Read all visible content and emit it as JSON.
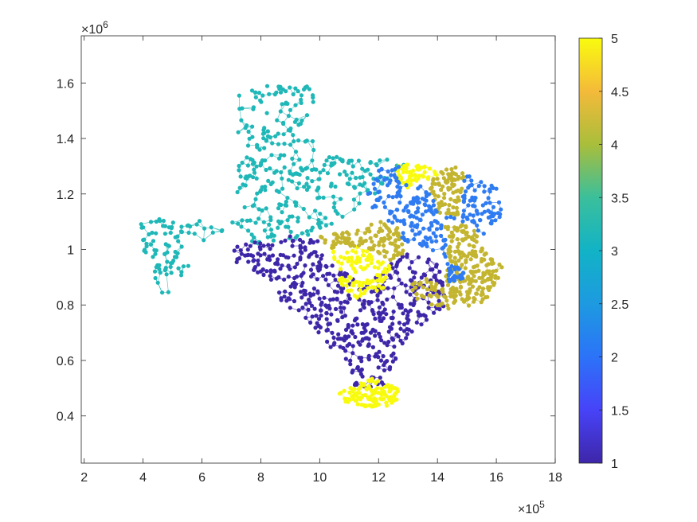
{
  "chart_data": {
    "type": "scatter",
    "description_style": "graph-partition network map",
    "xlim": [
      190000,
      1800000
    ],
    "ylim": [
      230000,
      1770000
    ],
    "x_ticks": [
      200000,
      400000,
      600000,
      800000,
      1000000,
      1200000,
      1400000,
      1600000,
      1800000
    ],
    "x_tick_labels": [
      "2",
      "4",
      "6",
      "8",
      "10",
      "12",
      "14",
      "16",
      "18"
    ],
    "y_ticks": [
      400000,
      600000,
      800000,
      1000000,
      1200000,
      1400000,
      1600000
    ],
    "y_tick_labels": [
      "0.4",
      "0.6",
      "0.8",
      "1",
      "1.2",
      "1.4",
      "1.6"
    ],
    "x_exponent_base": "×10",
    "x_exponent_power": "5",
    "y_exponent_base": "×10",
    "y_exponent_power": "6",
    "grid": false,
    "colorbar": {
      "limits": [
        1,
        5
      ],
      "ticks": [
        1,
        1.5,
        2,
        2.5,
        3,
        3.5,
        4,
        4.5,
        5
      ],
      "tick_labels": [
        "1",
        "1.5",
        "2",
        "2.5",
        "3",
        "3.5",
        "4",
        "4.5",
        "5"
      ],
      "colormap": "parula"
    },
    "clusters": [
      {
        "value": 3,
        "color": "#1fb7b7",
        "polygon": [
          [
            720000,
            1590000
          ],
          [
            980000,
            1590000
          ],
          [
            980000,
            1340000
          ],
          [
            1230000,
            1330000
          ],
          [
            1300000,
            1300000
          ],
          [
            1210000,
            1210000
          ],
          [
            1130000,
            1150000
          ],
          [
            990000,
            1060000
          ],
          [
            880000,
            1010000
          ],
          [
            780000,
            1010000
          ],
          [
            720000,
            1090000
          ],
          [
            630000,
            1040000
          ],
          [
            560000,
            990000
          ],
          [
            560000,
            910000
          ],
          [
            500000,
            830000
          ],
          [
            460000,
            830000
          ],
          [
            410000,
            960000
          ],
          [
            370000,
            1100000
          ],
          [
            500000,
            1120000
          ],
          [
            610000,
            1100000
          ],
          [
            720000,
            1100000
          ]
        ],
        "n_nodes": 420
      },
      {
        "value": 1,
        "color": "#3e26a8",
        "polygon": [
          [
            780000,
            1030000
          ],
          [
            900000,
            1050000
          ],
          [
            1000000,
            1030000
          ],
          [
            1020000,
            960000
          ],
          [
            1120000,
            900000
          ],
          [
            1150000,
            860000
          ],
          [
            1250000,
            960000
          ],
          [
            1320000,
            1000000
          ],
          [
            1400000,
            950000
          ],
          [
            1420000,
            870000
          ],
          [
            1430000,
            800000
          ],
          [
            1440000,
            790000
          ],
          [
            1320000,
            710000
          ],
          [
            1270000,
            640000
          ],
          [
            1260000,
            570000
          ],
          [
            1210000,
            500000
          ],
          [
            1110000,
            510000
          ],
          [
            1110000,
            580000
          ],
          [
            1040000,
            640000
          ],
          [
            930000,
            760000
          ],
          [
            860000,
            820000
          ],
          [
            850000,
            860000
          ],
          [
            810000,
            900000
          ],
          [
            700000,
            960000
          ],
          [
            700000,
            1010000
          ]
        ],
        "n_nodes": 520
      },
      {
        "value": 5,
        "color": "#f9fb0e",
        "polygon": [
          [
            1060000,
            480000
          ],
          [
            1180000,
            540000
          ],
          [
            1270000,
            500000
          ],
          [
            1260000,
            440000
          ],
          [
            1180000,
            430000
          ],
          [
            1090000,
            440000
          ]
        ],
        "n_nodes": 120
      },
      {
        "value": 5,
        "color": "#f9fb0e",
        "polygon": [
          [
            1040000,
            1010000
          ],
          [
            1080000,
            980000
          ],
          [
            1130000,
            1020000
          ],
          [
            1200000,
            970000
          ],
          [
            1250000,
            930000
          ],
          [
            1220000,
            860000
          ],
          [
            1160000,
            840000
          ],
          [
            1130000,
            820000
          ],
          [
            1070000,
            870000
          ]
        ],
        "n_nodes": 110
      },
      {
        "value": 5,
        "color": "#f9fb0e",
        "polygon": [
          [
            1270000,
            1310000
          ],
          [
            1380000,
            1300000
          ],
          [
            1400000,
            1270000
          ],
          [
            1360000,
            1230000
          ],
          [
            1320000,
            1240000
          ],
          [
            1300000,
            1220000
          ],
          [
            1260000,
            1250000
          ]
        ],
        "n_nodes": 60
      },
      {
        "value": 4,
        "color": "#c3b52f",
        "polygon": [
          [
            1000000,
            1060000
          ],
          [
            1140000,
            1080000
          ],
          [
            1210000,
            1110000
          ],
          [
            1260000,
            1090000
          ],
          [
            1280000,
            1040000
          ],
          [
            1290000,
            990000
          ],
          [
            1240000,
            960000
          ],
          [
            1170000,
            1000000
          ],
          [
            1120000,
            1010000
          ],
          [
            1050000,
            1000000
          ],
          [
            1010000,
            1020000
          ]
        ],
        "n_nodes": 110
      },
      {
        "value": 4,
        "color": "#c3b52f",
        "polygon": [
          [
            1400000,
            1280000
          ],
          [
            1470000,
            1300000
          ],
          [
            1490000,
            1270000
          ],
          [
            1480000,
            1200000
          ],
          [
            1470000,
            1120000
          ],
          [
            1400000,
            1130000
          ],
          [
            1380000,
            1200000
          ],
          [
            1360000,
            1230000
          ]
        ],
        "n_nodes": 90
      },
      {
        "value": 4,
        "color": "#c3b52f",
        "polygon": [
          [
            1420000,
            1080000
          ],
          [
            1500000,
            1090000
          ],
          [
            1550000,
            1050000
          ],
          [
            1560000,
            990000
          ],
          [
            1620000,
            940000
          ],
          [
            1600000,
            870000
          ],
          [
            1560000,
            810000
          ],
          [
            1500000,
            790000
          ],
          [
            1440000,
            780000
          ],
          [
            1380000,
            800000
          ],
          [
            1330000,
            820000
          ],
          [
            1300000,
            860000
          ],
          [
            1340000,
            900000
          ],
          [
            1420000,
            880000
          ],
          [
            1430000,
            950000
          ],
          [
            1440000,
            1020000
          ]
        ],
        "n_nodes": 260
      },
      {
        "value": 2,
        "color": "#2f7bf2",
        "polygon": [
          [
            1200000,
            1290000
          ],
          [
            1270000,
            1300000
          ],
          [
            1260000,
            1250000
          ],
          [
            1300000,
            1230000
          ],
          [
            1360000,
            1230000
          ],
          [
            1380000,
            1200000
          ],
          [
            1400000,
            1130000
          ],
          [
            1470000,
            1120000
          ],
          [
            1480000,
            1200000
          ],
          [
            1490000,
            1270000
          ],
          [
            1560000,
            1270000
          ],
          [
            1600000,
            1260000
          ],
          [
            1620000,
            1140000
          ],
          [
            1600000,
            1080000
          ],
          [
            1550000,
            1050000
          ],
          [
            1500000,
            1090000
          ],
          [
            1420000,
            1080000
          ],
          [
            1440000,
            1020000
          ],
          [
            1450000,
            960000
          ],
          [
            1430000,
            950000
          ],
          [
            1380000,
            1000000
          ],
          [
            1310000,
            1020000
          ],
          [
            1280000,
            1040000
          ],
          [
            1260000,
            1090000
          ],
          [
            1210000,
            1110000
          ],
          [
            1180000,
            1150000
          ],
          [
            1160000,
            1210000
          ]
        ],
        "n_nodes": 240
      },
      {
        "value": 2,
        "color": "#2f7bf2",
        "polygon": [
          [
            1430000,
            950000
          ],
          [
            1470000,
            940000
          ],
          [
            1500000,
            900000
          ],
          [
            1470000,
            880000
          ],
          [
            1440000,
            880000
          ]
        ],
        "n_nodes": 30
      }
    ]
  }
}
